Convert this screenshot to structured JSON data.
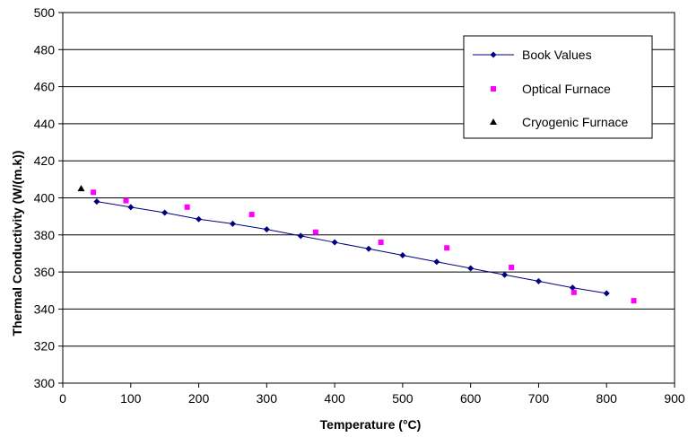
{
  "chart_data": {
    "type": "scatter",
    "title": "",
    "xlabel": "Temperature (°C)",
    "ylabel": "Thermal Conductivity (W/(m.k))",
    "xlim": [
      0,
      900
    ],
    "ylim": [
      300,
      500
    ],
    "x_ticks": [
      "0",
      "100",
      "200",
      "300",
      "400",
      "500",
      "600",
      "700",
      "800",
      "900"
    ],
    "y_ticks": [
      "300",
      "320",
      "340",
      "360",
      "380",
      "400",
      "420",
      "440",
      "460",
      "480",
      "500"
    ],
    "grid": "horizontal",
    "legend_position": "top-right",
    "series": [
      {
        "name": "Book Values",
        "marker": "diamond",
        "color": "#000080",
        "line": true,
        "points": [
          [
            50,
            398
          ],
          [
            100,
            395
          ],
          [
            150,
            392
          ],
          [
            200,
            388.5
          ],
          [
            250,
            386
          ],
          [
            300,
            383
          ],
          [
            350,
            379.5
          ],
          [
            400,
            376
          ],
          [
            450,
            372.5
          ],
          [
            500,
            369
          ],
          [
            550,
            365.5
          ],
          [
            600,
            362
          ],
          [
            650,
            358.5
          ],
          [
            700,
            355
          ],
          [
            750,
            351.5
          ],
          [
            800,
            348.5
          ]
        ]
      },
      {
        "name": "Optical Furnace",
        "marker": "square",
        "color": "#FF00FF",
        "line": false,
        "points": [
          [
            45,
            403
          ],
          [
            93,
            398.5
          ],
          [
            183,
            395
          ],
          [
            278,
            391
          ],
          [
            372,
            381.5
          ],
          [
            468,
            376
          ],
          [
            565,
            373
          ],
          [
            660,
            362.5
          ],
          [
            752,
            349
          ],
          [
            840,
            344.5
          ]
        ]
      },
      {
        "name": "Cryogenic Furnace",
        "marker": "triangle",
        "color": "#000000",
        "line": false,
        "points": [
          [
            27,
            405
          ]
        ]
      }
    ]
  }
}
